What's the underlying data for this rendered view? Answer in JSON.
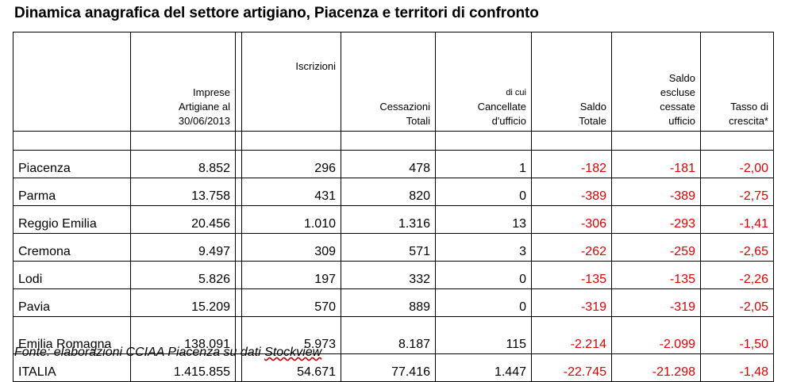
{
  "title": "Dinamica anagrafica del settore artigiano, Piacenza e territori di confronto",
  "headers": {
    "imprese": [
      "Imprese",
      "Artigiane al",
      "30/06/2013"
    ],
    "iscrizioni": [
      "Iscrizioni"
    ],
    "cessazioni": [
      "Cessazioni",
      "Totali"
    ],
    "cancellate": [
      "di cui",
      "Cancellate",
      "d'ufficio"
    ],
    "saldo_totale": [
      "Saldo",
      "Totale"
    ],
    "saldo_escluse": [
      "Saldo",
      "escluse",
      "cessate",
      "ufficio"
    ],
    "tasso": [
      "Tasso di",
      "crescita*"
    ]
  },
  "rows": [
    {
      "name": "Piacenza",
      "imprese": "8.852",
      "iscrizioni": "296",
      "cessazioni": "478",
      "cancellate": "1",
      "saldo_totale": "-182",
      "saldo_escluse": "-181",
      "tasso": "-2,00"
    },
    {
      "name": "Parma",
      "imprese": "13.758",
      "iscrizioni": "431",
      "cessazioni": "820",
      "cancellate": "0",
      "saldo_totale": "-389",
      "saldo_escluse": "-389",
      "tasso": "-2,75"
    },
    {
      "name": "Reggio Emilia",
      "imprese": "20.456",
      "iscrizioni": "1.010",
      "cessazioni": "1.316",
      "cancellate": "13",
      "saldo_totale": "-306",
      "saldo_escluse": "-293",
      "tasso": "-1,41"
    },
    {
      "name": "Cremona",
      "imprese": "9.497",
      "iscrizioni": "309",
      "cessazioni": "571",
      "cancellate": "3",
      "saldo_totale": "-262",
      "saldo_escluse": "-259",
      "tasso": "-2,65"
    },
    {
      "name": "Lodi",
      "imprese": "5.826",
      "iscrizioni": "197",
      "cessazioni": "332",
      "cancellate": "0",
      "saldo_totale": "-135",
      "saldo_escluse": "-135",
      "tasso": "-2,26"
    },
    {
      "name": "Pavia",
      "imprese": "15.209",
      "iscrizioni": "570",
      "cessazioni": "889",
      "cancellate": "0",
      "saldo_totale": "-319",
      "saldo_escluse": "-319",
      "tasso": "-2,05"
    },
    {
      "name": "Emilia Romagna",
      "imprese": "138.091",
      "iscrizioni": "5.973",
      "cessazioni": "8.187",
      "cancellate": "115",
      "saldo_totale": "-2.214",
      "saldo_escluse": "-2.099",
      "tasso": "-1,50"
    },
    {
      "name": "ITALIA",
      "imprese": "1.415.855",
      "iscrizioni": "54.671",
      "cessazioni": "77.416",
      "cancellate": "1.447",
      "saldo_totale": "-22.745",
      "saldo_escluse": "-21.298",
      "tasso": "-1,48"
    }
  ],
  "source": {
    "prefix": "Fonte: elaborazioni CCIAA Piacenza su dati ",
    "underlined": "Stockview"
  },
  "colors": {
    "negative": "#e00000",
    "text": "#000000",
    "border": "#000000"
  }
}
